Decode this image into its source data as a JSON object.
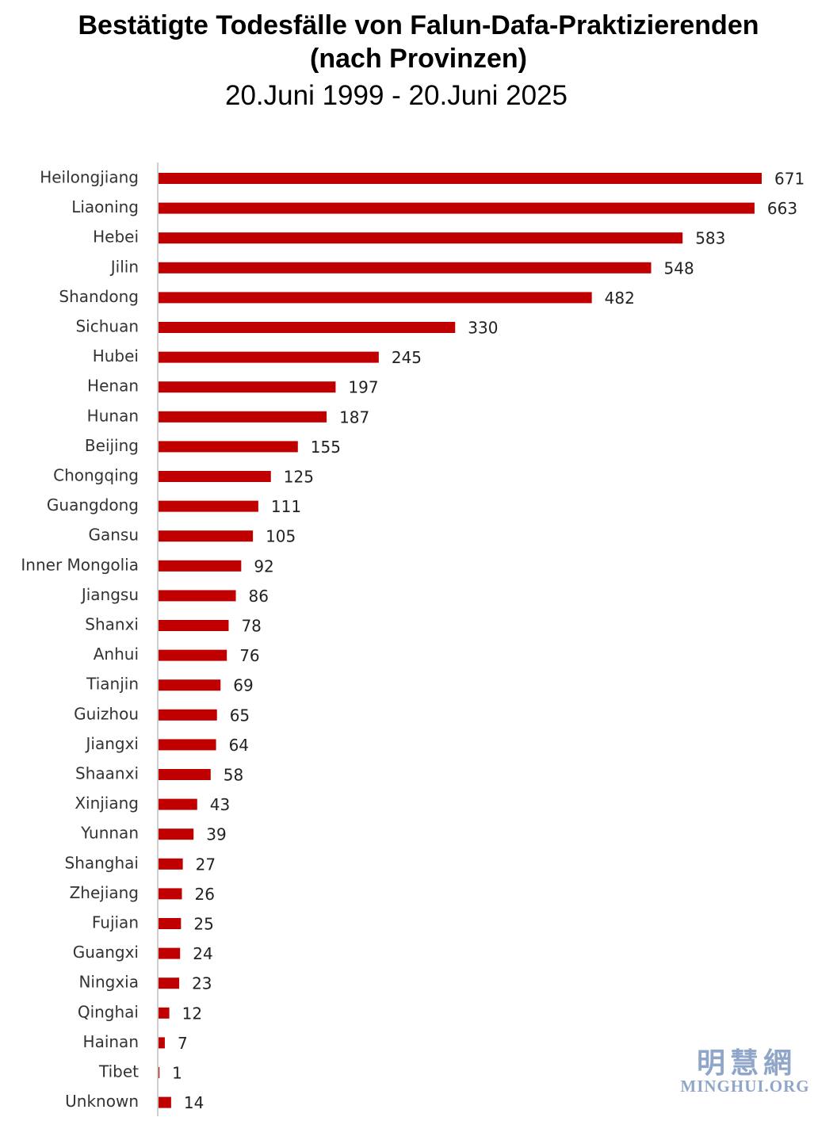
{
  "header": {
    "title_line1": "Bestätigte Todesfälle von Falun-Dafa-Praktizierenden",
    "title_line2": "(nach Provinzen)",
    "subtitle": "20.Juni 1999 - 20.Juni 2025"
  },
  "watermark": {
    "chinese": "明慧網",
    "latin": "MINGHUI.ORG"
  },
  "chart_data": {
    "type": "bar",
    "orientation": "horizontal",
    "title": "Bestätigte Todesfälle von Falun-Dafa-Praktizierenden (nach Provinzen)",
    "subtitle": "20.Juni 1999 - 20.Juni 2025",
    "xlabel": "",
    "ylabel": "",
    "xlim": [
      0,
      680
    ],
    "grid": false,
    "bar_color": "#c00000",
    "categories": [
      "Heilongjiang",
      "Liaoning",
      "Hebei",
      "Jilin",
      "Shandong",
      "Sichuan",
      "Hubei",
      "Henan",
      "Hunan",
      "Beijing",
      "Chongqing",
      "Guangdong",
      "Gansu",
      "Inner Mongolia",
      "Jiangsu",
      "Shanxi",
      "Anhui",
      "Tianjin",
      "Guizhou",
      "Jiangxi",
      "Shaanxi",
      "Xinjiang",
      "Yunnan",
      "Shanghai",
      "Zhejiang",
      "Fujian",
      "Guangxi",
      "Ningxia",
      "Qinghai",
      "Hainan",
      "Tibet",
      "Unknown"
    ],
    "values": [
      671,
      663,
      583,
      548,
      482,
      330,
      245,
      197,
      187,
      155,
      125,
      111,
      105,
      92,
      86,
      78,
      76,
      69,
      65,
      64,
      58,
      43,
      39,
      27,
      26,
      25,
      24,
      23,
      12,
      7,
      1,
      14
    ]
  }
}
